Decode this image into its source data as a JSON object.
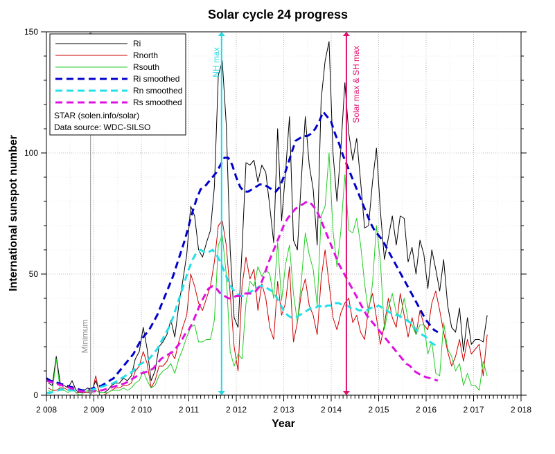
{
  "chart_data": {
    "type": "line",
    "title": "Solar cycle 24 progress",
    "xlabel": "Year",
    "ylabel": "International sunspot number",
    "xlim": [
      2008,
      2018
    ],
    "ylim": [
      0,
      150
    ],
    "x_ticks": [
      2008,
      2009,
      2010,
      2011,
      2012,
      2013,
      2014,
      2015,
      2016,
      2017,
      2018
    ],
    "x_tick_labels": [
      "2 008",
      "2 009",
      "2 010",
      "2 011",
      "2 012",
      "2 013",
      "2 014",
      "2 015",
      "2 016",
      "2 017",
      "2 018"
    ],
    "y_ticks": [
      0,
      50,
      100,
      150
    ],
    "y_tick_labels": [
      "0",
      "50",
      "100",
      "150"
    ],
    "grid": true,
    "legend_position": "top-left",
    "legend": [
      {
        "label": "Ri",
        "color": "#000000",
        "style": "solid"
      },
      {
        "label": "Rnorth",
        "color": "#cc0000",
        "style": "solid"
      },
      {
        "label": "Rsouth",
        "color": "#22cc22",
        "style": "solid"
      },
      {
        "label": "Ri smoothed",
        "color": "#0000cc",
        "style": "dashed"
      },
      {
        "label": "Rn smoothed",
        "color": "#22e0e8",
        "style": "dashed"
      },
      {
        "label": "Rs smoothed",
        "color": "#e010e0",
        "style": "dashed"
      }
    ],
    "legend_notes": [
      "STAR (solen.info/solar)",
      "Data source: WDC-SILSO"
    ],
    "annotations": [
      {
        "label": "Minimum",
        "x": 2008.93,
        "color": "#909090"
      },
      {
        "label": "NH max",
        "x": 2011.69,
        "color": "#22d8e0"
      },
      {
        "label": "Solar max & SH max",
        "x": 2014.32,
        "color": "#e0106e"
      }
    ],
    "series": [
      {
        "name": "Ri",
        "x_start": 2008.04,
        "x_step": 0.0833,
        "values": [
          5,
          4,
          16,
          5,
          4,
          3,
          6,
          2,
          1,
          2,
          3,
          2,
          6,
          1,
          1,
          2,
          4,
          5,
          5,
          7,
          6,
          8,
          15,
          18,
          28,
          19,
          6,
          10,
          20,
          22,
          25,
          31,
          24,
          37,
          47,
          58,
          78,
          74,
          60,
          57,
          63,
          68,
          86,
          132,
          138,
          112,
          60,
          32,
          28,
          60,
          96,
          95,
          97,
          88,
          95,
          92,
          78,
          63,
          110,
          72,
          92,
          115,
          64,
          60,
          89,
          115,
          95,
          85,
          62,
          122,
          138,
          146,
          100,
          80,
          102,
          129,
          108,
          97,
          106,
          88,
          69,
          70,
          88,
          102,
          76,
          56,
          65,
          74,
          62,
          74,
          73,
          55,
          61,
          50,
          64,
          58,
          44,
          60,
          52,
          43,
          56,
          37,
          28,
          26,
          36,
          18,
          32,
          21,
          23,
          23,
          22,
          33
        ]
      },
      {
        "name": "Rnorth",
        "x_start": 2008.04,
        "x_step": 0.0833,
        "values": [
          3,
          2,
          2,
          3,
          3,
          2,
          3,
          1,
          1,
          1,
          1,
          1,
          8,
          0,
          0,
          1,
          2,
          3,
          3,
          4,
          4,
          5,
          10,
          12,
          18,
          13,
          3,
          6,
          12,
          12,
          14,
          18,
          15,
          22,
          28,
          33,
          50,
          45,
          38,
          35,
          40,
          45,
          55,
          70,
          72,
          62,
          42,
          20,
          10,
          45,
          57,
          48,
          52,
          35,
          46,
          40,
          28,
          23,
          47,
          33,
          38,
          53,
          22,
          30,
          42,
          48,
          37,
          33,
          25,
          48,
          60,
          46,
          32,
          27,
          34,
          38,
          40,
          30,
          33,
          26,
          23,
          36,
          42,
          32,
          21,
          29,
          40,
          32,
          28,
          42,
          33,
          24,
          32,
          25,
          35,
          29,
          27,
          38,
          43,
          35,
          26,
          18,
          12,
          16,
          23,
          14,
          23,
          17,
          19,
          21,
          8,
          25
        ]
      },
      {
        "name": "Rsouth",
        "x_start": 2008.04,
        "x_step": 0.0833,
        "values": [
          2,
          1,
          15,
          2,
          2,
          1,
          3,
          1,
          0,
          1,
          2,
          1,
          2,
          1,
          1,
          1,
          2,
          2,
          2,
          3,
          2,
          3,
          5,
          6,
          10,
          6,
          3,
          4,
          8,
          10,
          11,
          13,
          9,
          15,
          19,
          24,
          28,
          29,
          22,
          22,
          23,
          23,
          31,
          62,
          66,
          50,
          18,
          12,
          17,
          15,
          38,
          47,
          45,
          53,
          49,
          52,
          50,
          40,
          63,
          39,
          54,
          62,
          42,
          30,
          47,
          67,
          58,
          52,
          37,
          74,
          78,
          100,
          68,
          53,
          68,
          91,
          68,
          67,
          73,
          62,
          46,
          34,
          46,
          70,
          55,
          27,
          36,
          42,
          34,
          32,
          40,
          31,
          29,
          25,
          29,
          29,
          17,
          22,
          9,
          8,
          30,
          19,
          16,
          10,
          13,
          4,
          9,
          4,
          4,
          2,
          14,
          8
        ]
      },
      {
        "name": "Ri smoothed",
        "x_start": 2008.0,
        "x_step": 0.0833,
        "values": [
          7,
          6,
          5.5,
          5,
          4.5,
          4,
          3.5,
          3,
          2.5,
          2,
          2,
          2.5,
          3,
          3.5,
          4,
          5,
          6,
          7,
          9,
          11,
          13,
          15,
          17,
          20,
          23,
          25,
          27,
          30,
          33,
          37,
          41,
          45,
          49,
          54,
          59,
          64,
          70,
          76,
          81,
          85,
          86,
          88,
          90,
          92,
          95,
          98,
          98,
          95,
          90,
          86,
          84,
          84,
          85,
          86,
          87,
          87,
          86,
          85,
          84,
          86,
          90,
          95,
          100,
          105,
          106,
          107,
          107,
          108,
          110,
          113,
          117,
          115,
          113,
          108,
          104,
          99,
          95,
          91,
          87,
          83,
          79,
          75,
          71,
          68,
          66,
          64,
          61,
          58,
          55,
          52,
          49,
          46,
          43,
          40,
          37,
          34,
          31,
          29,
          27,
          26
        ]
      },
      {
        "name": "Rn smoothed",
        "x_start": 2008.0,
        "x_step": 0.0833,
        "values": [
          1,
          1,
          1.5,
          2,
          2.5,
          2.5,
          2,
          2,
          1.5,
          1.5,
          1.5,
          2,
          2.5,
          3,
          3.5,
          4,
          4.5,
          5,
          6,
          7,
          8,
          9,
          10,
          12,
          13,
          14,
          15,
          17,
          19,
          22,
          25,
          28,
          32,
          37,
          42,
          47,
          52,
          56,
          59,
          60,
          59,
          59,
          60,
          58,
          55,
          51,
          47,
          44,
          42,
          41,
          41,
          42,
          43,
          44,
          45,
          45,
          44,
          43,
          41,
          38,
          35,
          33,
          32,
          32,
          33,
          34,
          35,
          36,
          36,
          37,
          36,
          37,
          37,
          38,
          38,
          37,
          37,
          36,
          36,
          35,
          35,
          35,
          36,
          36,
          37,
          36,
          35,
          34,
          33,
          33,
          32,
          31,
          30,
          28,
          26,
          25,
          24,
          22,
          21,
          20
        ]
      },
      {
        "name": "Rs smoothed",
        "x_start": 2008.0,
        "x_step": 0.0833,
        "values": [
          6,
          5.5,
          5,
          4.5,
          4,
          3.5,
          3,
          2.5,
          2,
          1.5,
          1.5,
          1.5,
          1.5,
          2,
          2,
          2.5,
          3,
          3.5,
          4,
          4.5,
          5,
          6,
          7,
          8,
          9,
          9.5,
          10,
          11,
          13,
          15,
          16,
          17,
          18,
          20,
          22,
          25,
          27,
          30,
          34,
          38,
          41,
          44,
          45,
          44,
          42,
          41,
          40,
          40,
          41,
          41,
          42,
          42,
          42,
          43,
          45,
          49,
          54,
          58,
          62,
          66,
          70,
          73,
          75,
          77,
          78,
          79,
          80,
          79,
          77,
          74,
          70,
          66,
          62,
          58,
          54,
          51,
          48,
          45,
          42,
          39,
          36,
          33,
          31,
          29,
          27,
          25,
          23,
          21,
          19,
          17,
          15,
          13,
          12,
          10,
          9,
          8,
          7.5,
          7,
          6.5,
          6
        ]
      }
    ]
  }
}
